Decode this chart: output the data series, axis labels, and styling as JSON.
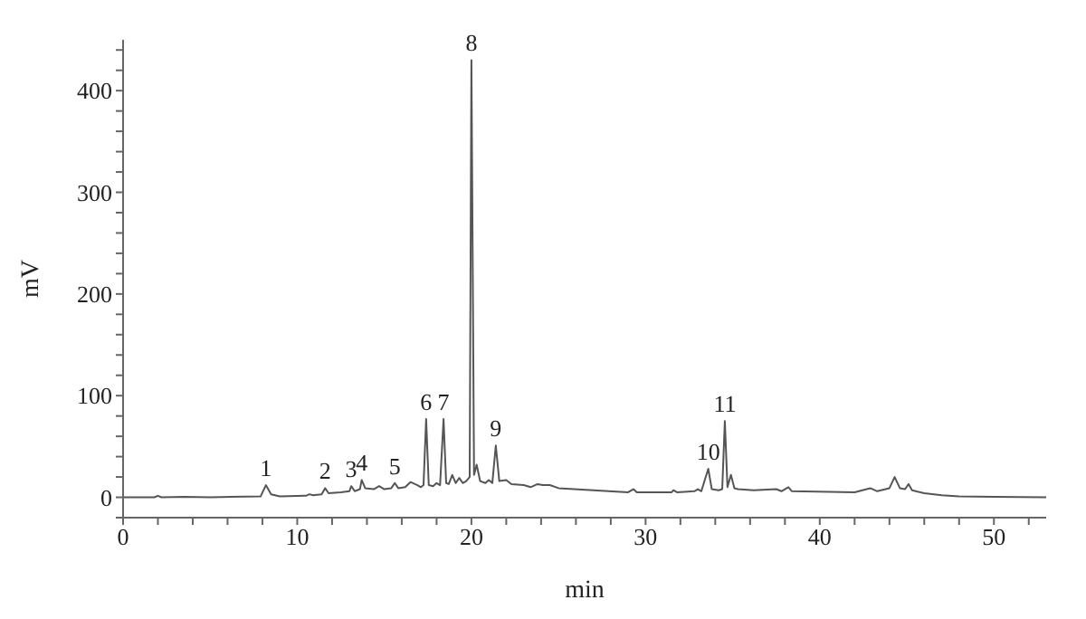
{
  "chart_data": {
    "type": "line",
    "xlabel": "min",
    "ylabel": "mV",
    "grid": false,
    "legend": false,
    "marker": "none",
    "line_style": "solid",
    "xlim": [
      0,
      53
    ],
    "ylim": [
      -20,
      450
    ],
    "xticks": [
      0,
      {
        "value": 2,
        "label": null
      },
      {
        "value": 4,
        "label": null
      },
      {
        "value": 6,
        "label": null
      },
      {
        "value": 8,
        "label": null
      },
      10,
      {
        "value": 12,
        "label": null
      },
      {
        "value": 14,
        "label": null
      },
      {
        "value": 16,
        "label": null
      },
      {
        "value": 18,
        "label": null
      },
      20,
      {
        "value": 22,
        "label": null
      },
      {
        "value": 24,
        "label": null
      },
      {
        "value": 26,
        "label": null
      },
      {
        "value": 28,
        "label": null
      },
      30,
      {
        "value": 32,
        "label": null
      },
      {
        "value": 34,
        "label": null
      },
      {
        "value": 36,
        "label": null
      },
      {
        "value": 38,
        "label": null
      },
      40,
      {
        "value": 42,
        "label": null
      },
      {
        "value": 44,
        "label": null
      },
      {
        "value": 46,
        "label": null
      },
      {
        "value": 48,
        "label": null
      },
      50,
      {
        "value": 52,
        "label": null
      }
    ],
    "yticks": [
      {
        "value": -20,
        "label": null
      },
      0,
      {
        "value": 20,
        "label": null
      },
      {
        "value": 40,
        "label": null
      },
      {
        "value": 60,
        "label": null
      },
      {
        "value": 80,
        "label": null
      },
      100,
      {
        "value": 120,
        "label": null
      },
      {
        "value": 140,
        "label": null
      },
      {
        "value": 160,
        "label": null
      },
      {
        "value": 180,
        "label": null
      },
      200,
      {
        "value": 220,
        "label": null
      },
      {
        "value": 240,
        "label": null
      },
      {
        "value": 260,
        "label": null
      },
      {
        "value": 280,
        "label": null
      },
      300,
      {
        "value": 320,
        "label": null
      },
      {
        "value": 340,
        "label": null
      },
      {
        "value": 360,
        "label": null
      },
      {
        "value": 380,
        "label": null
      },
      400,
      {
        "value": 420,
        "label": null
      },
      {
        "value": 440,
        "label": null
      }
    ],
    "series": [
      {
        "color": "#555555",
        "x": [
          0,
          1.8,
          2,
          2.2,
          3.5,
          5,
          7.9,
          8.2,
          8.5,
          9,
          10.5,
          10.7,
          10.9,
          11.4,
          11.6,
          11.8,
          12.5,
          13.0,
          13.1,
          13.3,
          13.6,
          13.7,
          13.9,
          14.4,
          14.7,
          15.0,
          15.4,
          15.6,
          15.8,
          16.2,
          16.5,
          16.9,
          17.1,
          17.25,
          17.4,
          17.55,
          17.8,
          18.0,
          18.2,
          18.4,
          18.55,
          18.7,
          18.9,
          19.1,
          19.3,
          19.5,
          19.7,
          19.9,
          20.0,
          20.15,
          20.3,
          20.5,
          20.8,
          21.0,
          21.2,
          21.4,
          21.6,
          22.0,
          22.3,
          23.0,
          23.4,
          23.8,
          24.1,
          24.5,
          25,
          27,
          29,
          29.3,
          29.5,
          31.5,
          31.6,
          31.8,
          32.8,
          33.0,
          33.2,
          33.6,
          33.8,
          34.2,
          34.4,
          34.55,
          34.7,
          34.9,
          35.1,
          35.3,
          36.2,
          37.5,
          37.8,
          38.2,
          38.4,
          42,
          42.9,
          43.3,
          44.0,
          44.3,
          44.6,
          44.9,
          45.1,
          45.3,
          46,
          47,
          48,
          50,
          53
        ],
        "values": [
          0,
          0,
          1.5,
          0,
          0.5,
          0,
          1,
          12,
          3,
          1,
          1.5,
          3,
          2,
          3,
          9,
          4,
          5,
          6,
          11,
          6,
          8,
          17,
          9,
          8,
          11,
          8,
          9,
          14,
          9,
          10,
          15,
          12,
          10,
          12,
          77,
          12,
          11,
          14,
          12,
          77,
          14,
          13,
          22,
          14,
          19,
          14,
          16,
          20,
          430,
          22,
          32,
          16,
          14,
          17,
          14,
          51,
          16,
          17,
          13,
          12,
          10,
          13,
          12,
          12,
          9,
          7,
          5,
          8,
          5,
          5,
          7,
          5,
          6,
          8,
          6,
          28,
          8,
          7,
          8,
          75,
          10,
          22,
          9,
          8,
          7,
          8,
          6,
          10,
          6,
          5,
          9,
          6,
          9,
          20,
          9,
          8,
          13,
          7,
          4,
          2,
          1,
          0.5,
          0
        ]
      }
    ],
    "annotations": [
      {
        "text": "1",
        "x": 8.2,
        "y": 12
      },
      {
        "text": "2",
        "x": 11.6,
        "y": 9
      },
      {
        "text": "3",
        "x": 13.1,
        "y": 11
      },
      {
        "text": "4",
        "x": 13.7,
        "y": 17
      },
      {
        "text": "5",
        "x": 15.6,
        "y": 14
      },
      {
        "text": "6",
        "x": 17.4,
        "y": 77
      },
      {
        "text": "7",
        "x": 18.4,
        "y": 77
      },
      {
        "text": "8",
        "x": 20.0,
        "y": 430
      },
      {
        "text": "9",
        "x": 21.4,
        "y": 51
      },
      {
        "text": "10",
        "x": 33.6,
        "y": 28
      },
      {
        "text": "11",
        "x": 34.55,
        "y": 75
      }
    ]
  }
}
